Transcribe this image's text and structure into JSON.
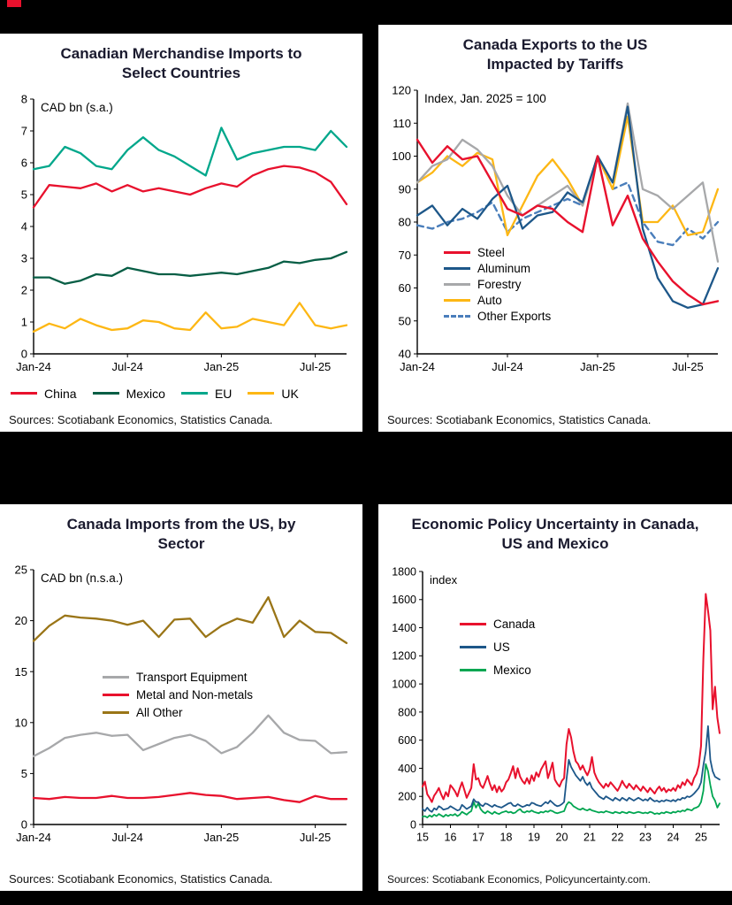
{
  "page": {
    "background": "#000000",
    "accent_color": "#e8112d"
  },
  "chart_data": [
    {
      "id": "canadian-merchandise-imports-select-countries",
      "type": "line",
      "title": "Canadian Merchandise Imports to Select Countries",
      "unit_label": "CAD bn (s.a.)",
      "sources": "Sources: Scotiabank Economics, Statistics Canada.",
      "ylim": [
        0,
        8
      ],
      "yticks": [
        0,
        1,
        2,
        3,
        4,
        5,
        6,
        7,
        8
      ],
      "x_frequency": "monthly",
      "x_labels": [
        "Jan-24",
        "Feb-24",
        "Mar-24",
        "Apr-24",
        "May-24",
        "Jun-24",
        "Jul-24",
        "Aug-24",
        "Sep-24",
        "Oct-24",
        "Nov-24",
        "Dec-24",
        "Jan-25",
        "Feb-25",
        "Mar-25",
        "Apr-25",
        "May-25",
        "Jun-25",
        "Jul-25",
        "Aug-25",
        "Sep-25"
      ],
      "xticks": [
        {
          "label": "Jan-24",
          "i": 0
        },
        {
          "label": "Jul-24",
          "i": 6
        },
        {
          "label": "Jan-25",
          "i": 12
        },
        {
          "label": "Jul-25",
          "i": 18
        }
      ],
      "legend_placement": "bottom",
      "series": [
        {
          "name": "China",
          "color": "#e8112d",
          "width": 2.3,
          "values": [
            4.6,
            5.3,
            5.25,
            5.2,
            5.35,
            5.1,
            5.3,
            5.1,
            5.2,
            5.1,
            5.0,
            5.2,
            5.35,
            5.25,
            5.6,
            5.8,
            5.9,
            5.85,
            5.7,
            5.4,
            4.7
          ]
        },
        {
          "name": "Mexico",
          "color": "#075e45",
          "width": 2.3,
          "values": [
            2.4,
            2.4,
            2.2,
            2.3,
            2.5,
            2.45,
            2.7,
            2.6,
            2.5,
            2.5,
            2.45,
            2.5,
            2.55,
            2.5,
            2.6,
            2.7,
            2.9,
            2.85,
            2.95,
            3.0,
            3.2
          ]
        },
        {
          "name": "EU",
          "color": "#00a78b",
          "width": 2.3,
          "values": [
            5.8,
            5.9,
            6.5,
            6.3,
            5.9,
            5.8,
            6.4,
            6.8,
            6.4,
            6.2,
            5.9,
            5.6,
            7.1,
            6.1,
            6.3,
            6.4,
            6.5,
            6.5,
            6.4,
            7.0,
            6.5
          ]
        },
        {
          "name": "UK",
          "color": "#fdb714",
          "width": 2.3,
          "values": [
            0.7,
            0.95,
            0.8,
            1.1,
            0.9,
            0.75,
            0.8,
            1.05,
            1.0,
            0.8,
            0.75,
            1.3,
            0.8,
            0.85,
            1.1,
            1.0,
            0.9,
            1.6,
            0.9,
            0.8,
            0.9
          ]
        }
      ]
    },
    {
      "id": "canada-exports-us-tariffs",
      "type": "line",
      "title": "Canada Exports to the US Impacted by Tariffs",
      "unit_label": "Index, Jan. 2025 = 100",
      "sources": "Sources: Scotiabank Economics, Statistics Canada.",
      "ylim": [
        40,
        120
      ],
      "yticks": [
        40,
        50,
        60,
        70,
        80,
        90,
        100,
        110,
        120
      ],
      "x_frequency": "monthly",
      "x_labels": [
        "Jan-24",
        "Feb-24",
        "Mar-24",
        "Apr-24",
        "May-24",
        "Jun-24",
        "Jul-24",
        "Aug-24",
        "Sep-24",
        "Oct-24",
        "Nov-24",
        "Dec-24",
        "Jan-25",
        "Feb-25",
        "Mar-25",
        "Apr-25",
        "May-25",
        "Jun-25",
        "Jul-25",
        "Aug-25",
        "Sep-25"
      ],
      "xticks": [
        {
          "label": "Jan-24",
          "i": 0
        },
        {
          "label": "Jul-24",
          "i": 6
        },
        {
          "label": "Jan-25",
          "i": 12
        },
        {
          "label": "Jul-25",
          "i": 18
        }
      ],
      "legend_placement": "inside",
      "series": [
        {
          "name": "Steel",
          "color": "#e8112d",
          "width": 2.4,
          "values": [
            105,
            98,
            103,
            99,
            100,
            92,
            84,
            82,
            85,
            84,
            80,
            77,
            100,
            79,
            88,
            75,
            68,
            62,
            58,
            55,
            56
          ]
        },
        {
          "name": "Aluminum",
          "color": "#1d5789",
          "width": 2.3,
          "values": [
            82,
            85,
            79,
            84,
            81,
            87,
            91,
            78,
            82,
            83,
            89,
            86,
            100,
            92,
            115,
            78,
            63,
            56,
            54,
            55,
            66
          ]
        },
        {
          "name": "Forestry",
          "color": "#a7a8aa",
          "width": 2.3,
          "values": [
            92,
            97,
            99,
            105,
            102,
            97,
            88,
            82,
            85,
            88,
            91,
            85,
            100,
            92,
            116,
            90,
            88,
            84,
            88,
            92,
            68
          ]
        },
        {
          "name": "Auto",
          "color": "#fdb714",
          "width": 2.3,
          "values": [
            92,
            95,
            100,
            97,
            101,
            99,
            76,
            85,
            94,
            99,
            93,
            85,
            100,
            90,
            112,
            80,
            80,
            85,
            76,
            77,
            90
          ]
        },
        {
          "name": "Other Exports",
          "color": "#4a7ebb",
          "width": 2.4,
          "dash": "7 5",
          "values": [
            79,
            78,
            80,
            81,
            83,
            86,
            77,
            81,
            83,
            85,
            87,
            85,
            100,
            90,
            92,
            80,
            74,
            73,
            78,
            75,
            80
          ]
        }
      ]
    },
    {
      "id": "canada-imports-from-us-by-sector",
      "type": "line",
      "title": "Canada Imports from the US, by Sector",
      "unit_label": "CAD bn (n.s.a.)",
      "sources": "Sources: Scotiabank Economics, Statistics Canada.",
      "ylim": [
        0,
        25
      ],
      "yticks": [
        0,
        5,
        10,
        15,
        20,
        25
      ],
      "x_frequency": "monthly",
      "x_labels": [
        "Jan-24",
        "Feb-24",
        "Mar-24",
        "Apr-24",
        "May-24",
        "Jun-24",
        "Jul-24",
        "Aug-24",
        "Sep-24",
        "Oct-24",
        "Nov-24",
        "Dec-24",
        "Jan-25",
        "Feb-25",
        "Mar-25",
        "Apr-25",
        "May-25",
        "Jun-25",
        "Jul-25",
        "Aug-25",
        "Sep-25"
      ],
      "xticks": [
        {
          "label": "Jan-24",
          "i": 0
        },
        {
          "label": "Jul-24",
          "i": 6
        },
        {
          "label": "Jan-25",
          "i": 12
        },
        {
          "label": "Jul-25",
          "i": 18
        }
      ],
      "legend_placement": "inside",
      "series": [
        {
          "name": "Transport Equipment",
          "color": "#a7a8aa",
          "width": 2.3,
          "values": [
            6.7,
            7.5,
            8.5,
            8.8,
            9.0,
            8.7,
            8.8,
            7.3,
            7.9,
            8.5,
            8.8,
            8.2,
            7.0,
            7.6,
            9.0,
            10.7,
            9.0,
            8.3,
            8.2,
            7.0,
            7.1
          ]
        },
        {
          "name": "Metal and Non-metals",
          "color": "#e8112d",
          "width": 2.3,
          "values": [
            2.6,
            2.5,
            2.7,
            2.6,
            2.6,
            2.8,
            2.6,
            2.6,
            2.7,
            2.9,
            3.1,
            2.9,
            2.8,
            2.5,
            2.6,
            2.7,
            2.4,
            2.2,
            2.8,
            2.5,
            2.5
          ]
        },
        {
          "name": "All Other",
          "color": "#9a7517",
          "width": 2.3,
          "values": [
            18.0,
            19.5,
            20.5,
            20.3,
            20.2,
            20.0,
            19.6,
            20.0,
            18.4,
            20.1,
            20.2,
            18.4,
            19.5,
            20.2,
            19.8,
            22.3,
            18.4,
            20.0,
            18.9,
            18.8,
            17.8
          ]
        }
      ]
    },
    {
      "id": "economic-policy-uncertainty",
      "type": "line",
      "title": "Economic Policy Uncertainty in Canada, US and Mexico",
      "unit_label": "index",
      "sources": "Sources: Scotiabank Economics, Policyuncertainty.com.",
      "ylim": [
        0,
        1800
      ],
      "yticks": [
        0,
        200,
        400,
        600,
        800,
        1000,
        1200,
        1400,
        1600,
        1800
      ],
      "x_frequency": "monthly",
      "x_range": "Jan-2015 to Sep-2025",
      "xticks": [
        {
          "label": "15",
          "i": 0
        },
        {
          "label": "16",
          "i": 12
        },
        {
          "label": "17",
          "i": 24
        },
        {
          "label": "18",
          "i": 36
        },
        {
          "label": "19",
          "i": 48
        },
        {
          "label": "20",
          "i": 60
        },
        {
          "label": "21",
          "i": 72
        },
        {
          "label": "22",
          "i": 84
        },
        {
          "label": "23",
          "i": 96
        },
        {
          "label": "24",
          "i": 108
        },
        {
          "label": "25",
          "i": 120
        }
      ],
      "legend_placement": "inside",
      "series": [
        {
          "name": "Canada",
          "color": "#e8112d",
          "width": 2.0,
          "values": [
            270,
            305,
            215,
            190,
            160,
            205,
            230,
            260,
            215,
            180,
            230,
            200,
            280,
            260,
            235,
            200,
            255,
            300,
            245,
            190,
            225,
            260,
            430,
            320,
            330,
            280,
            260,
            300,
            345,
            290,
            245,
            280,
            230,
            270,
            235,
            255,
            300,
            320,
            365,
            415,
            330,
            400,
            340,
            310,
            290,
            330,
            290,
            350,
            310,
            370,
            340,
            390,
            420,
            450,
            330,
            380,
            440,
            320,
            290,
            270,
            310,
            330,
            570,
            680,
            620,
            520,
            450,
            430,
            390,
            420,
            380,
            350,
            390,
            480,
            370,
            330,
            300,
            280,
            260,
            290,
            270,
            300,
            280,
            260,
            240,
            270,
            310,
            280,
            260,
            290,
            270,
            250,
            280,
            260,
            240,
            270,
            250,
            230,
            260,
            240,
            220,
            250,
            270,
            240,
            260,
            230,
            250,
            240,
            260,
            240,
            280,
            260,
            300,
            280,
            320,
            300,
            280,
            330,
            360,
            420,
            560,
            1180,
            1640,
            1520,
            1380,
            820,
            980,
            760,
            650
          ]
        },
        {
          "name": "US",
          "color": "#1d5789",
          "width": 1.8,
          "values": [
            110,
            95,
            120,
            100,
            90,
            115,
            105,
            130,
            120,
            105,
            110,
            115,
            130,
            120,
            110,
            100,
            105,
            140,
            125,
            110,
            120,
            130,
            180,
            160,
            160,
            140,
            130,
            150,
            145,
            135,
            125,
            140,
            130,
            125,
            120,
            130,
            140,
            150,
            155,
            135,
            130,
            145,
            135,
            125,
            130,
            140,
            135,
            155,
            150,
            140,
            135,
            130,
            145,
            160,
            150,
            170,
            155,
            140,
            130,
            135,
            145,
            160,
            320,
            460,
            410,
            380,
            350,
            330,
            310,
            340,
            300,
            280,
            300,
            260,
            240,
            220,
            200,
            190,
            180,
            200,
            190,
            180,
            170,
            190,
            180,
            170,
            190,
            180,
            170,
            190,
            180,
            170,
            180,
            190,
            180,
            170,
            180,
            170,
            190,
            175,
            165,
            170,
            160,
            170,
            165,
            175,
            170,
            165,
            175,
            165,
            180,
            175,
            190,
            185,
            200,
            195,
            205,
            220,
            240,
            260,
            300,
            420,
            520,
            700,
            460,
            380,
            340,
            330,
            320
          ]
        },
        {
          "name": "Mexico",
          "color": "#00a651",
          "width": 1.8,
          "values": [
            55,
            60,
            50,
            65,
            55,
            70,
            60,
            75,
            65,
            55,
            70,
            60,
            70,
            65,
            75,
            60,
            70,
            90,
            80,
            70,
            85,
            95,
            160,
            120,
            150,
            110,
            90,
            80,
            95,
            85,
            75,
            90,
            80,
            75,
            85,
            90,
            95,
            85,
            90,
            80,
            85,
            100,
            110,
            90,
            85,
            95,
            90,
            100,
            90,
            85,
            80,
            90,
            85,
            95,
            90,
            100,
            95,
            85,
            80,
            85,
            90,
            95,
            140,
            160,
            150,
            130,
            120,
            110,
            105,
            115,
            105,
            100,
            110,
            100,
            95,
            90,
            85,
            90,
            85,
            95,
            90,
            85,
            80,
            90,
            85,
            80,
            90,
            85,
            80,
            90,
            85,
            80,
            85,
            90,
            85,
            80,
            85,
            80,
            90,
            85,
            75,
            80,
            75,
            85,
            80,
            90,
            85,
            80,
            90,
            85,
            95,
            90,
            100,
            95,
            110,
            105,
            100,
            115,
            120,
            130,
            160,
            240,
            430,
            380,
            280,
            200,
            170,
            120,
            150
          ]
        }
      ]
    }
  ]
}
